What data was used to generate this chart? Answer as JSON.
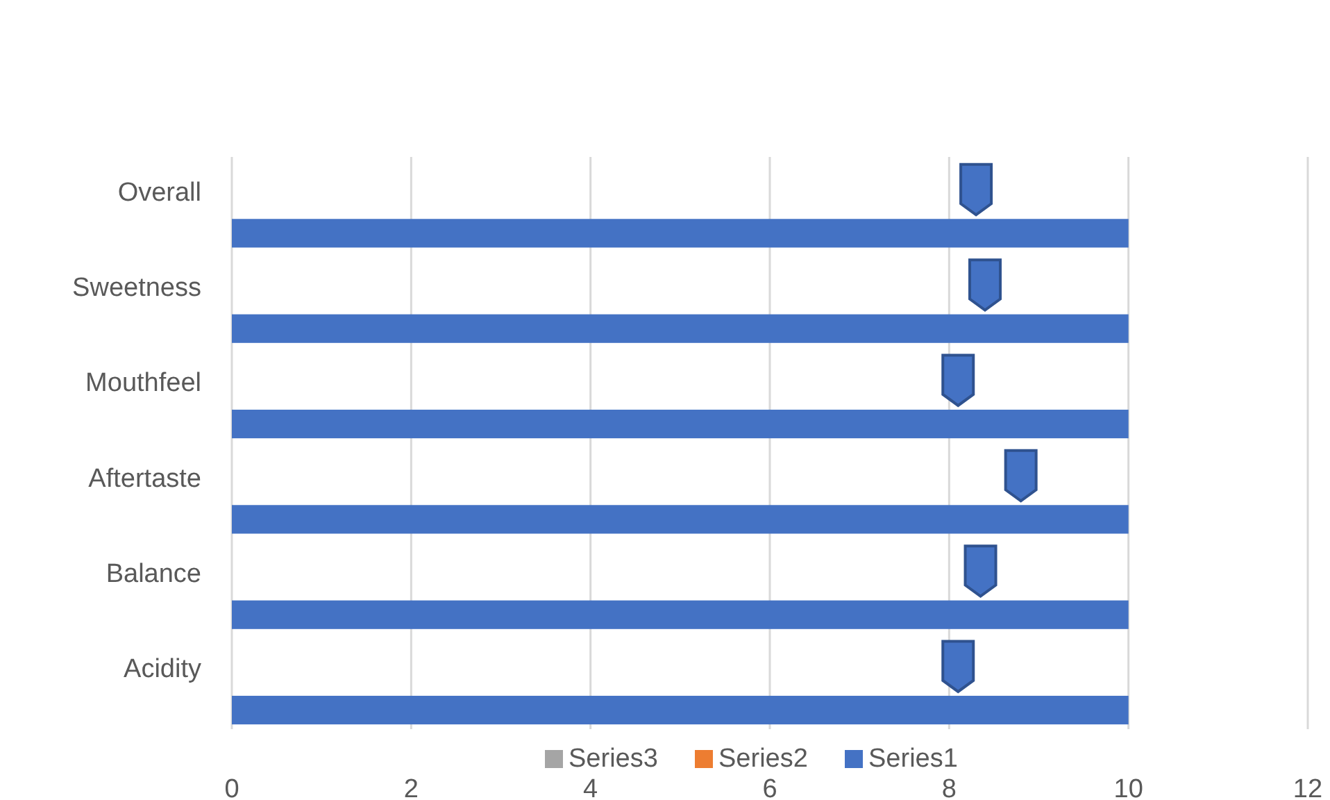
{
  "chart_data": {
    "type": "bar",
    "orientation": "horizontal",
    "categories": [
      "Overall",
      "Sweetness",
      "Mouthfeel",
      "Aftertaste",
      "Balance",
      "Acidity"
    ],
    "series": [
      {
        "name": "Series1",
        "color": "#4472c4",
        "values": [
          10,
          10,
          10,
          10,
          10,
          10
        ]
      },
      {
        "name": "Series2",
        "color": "#ed7d31",
        "values": [
          null,
          null,
          null,
          null,
          null,
          null
        ]
      },
      {
        "name": "Series3",
        "color": "#a5a5a5",
        "values": [
          null,
          null,
          null,
          null,
          null,
          null
        ]
      },
      {
        "type": "scatter",
        "color": "#4472c4",
        "values": [
          8.3,
          8.4,
          8.1,
          8.8,
          8.35,
          8.1
        ]
      }
    ],
    "xlim": [
      0,
      12
    ],
    "xticks": [
      0,
      2,
      4,
      6,
      8,
      10,
      12
    ],
    "grid": "x",
    "legend": "bottom"
  }
}
